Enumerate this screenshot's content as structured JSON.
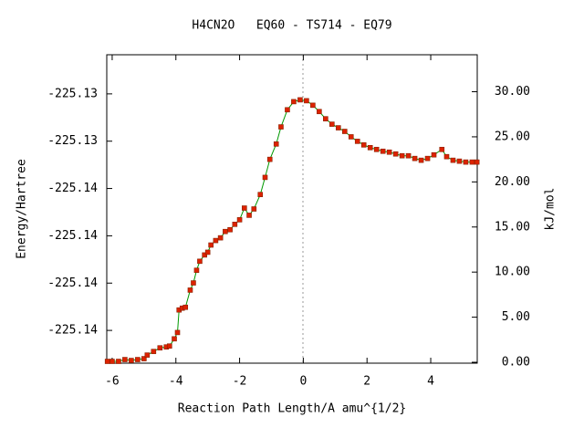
{
  "chart_data": {
    "type": "line",
    "title": "H4CN2O   EQ60 - TS714 - EQ79",
    "x_label": "Reaction Path Length/A amu^{1/2}",
    "y_label": "Energy/Hartree",
    "y2_label": "kJ/mol",
    "xlim": [
      -6.17,
      5.46
    ],
    "xticks": [
      -6,
      -4,
      -2,
      0,
      2,
      4
    ],
    "ylim": [
      -225.141385,
      -225.128346
    ],
    "yticks": [
      {
        "value": -225.13,
        "label": "-225.13"
      },
      {
        "value": -225.132,
        "label": "-225.13"
      },
      {
        "value": -225.134,
        "label": "-225.14"
      },
      {
        "value": -225.136,
        "label": "-225.14"
      },
      {
        "value": -225.138,
        "label": "-225.14"
      },
      {
        "value": -225.14,
        "label": "-225.14"
      }
    ],
    "y2lim": [
      -0.1,
      34.1
    ],
    "y2ticks": [
      {
        "value": 0,
        "label": "0.00"
      },
      {
        "value": 5,
        "label": "5.00"
      },
      {
        "value": 10,
        "label": "10.00"
      },
      {
        "value": 15,
        "label": "15.00"
      },
      {
        "value": 20,
        "label": "20.00"
      },
      {
        "value": 25,
        "label": "25.00"
      },
      {
        "value": 30,
        "label": "30.00"
      }
    ],
    "x": [
      -6.15,
      -6.0,
      -5.8,
      -5.6,
      -5.4,
      -5.2,
      -5.0,
      -4.9,
      -4.7,
      -4.5,
      -4.3,
      -4.2,
      -4.05,
      -3.95,
      -3.9,
      -3.8,
      -3.7,
      -3.55,
      -3.45,
      -3.35,
      -3.25,
      -3.1,
      -3.0,
      -2.9,
      -2.75,
      -2.6,
      -2.45,
      -2.3,
      -2.15,
      -2.0,
      -1.85,
      -1.7,
      -1.55,
      -1.35,
      -1.2,
      -1.05,
      -0.85,
      -0.7,
      -0.5,
      -0.3,
      -0.1,
      0.1,
      0.3,
      0.5,
      0.7,
      0.9,
      1.1,
      1.3,
      1.5,
      1.7,
      1.9,
      2.1,
      2.3,
      2.5,
      2.7,
      2.9,
      3.1,
      3.3,
      3.5,
      3.7,
      3.9,
      4.1,
      4.35,
      4.5,
      4.7,
      4.9,
      5.1,
      5.3,
      5.45
    ],
    "series": [
      {
        "axis": "y2",
        "color": "#009900",
        "marker_color": "#dd2200",
        "values": [
          0.1,
          0.1,
          0.1,
          0.3,
          0.2,
          0.3,
          0.4,
          0.8,
          1.2,
          1.6,
          1.7,
          1.8,
          2.6,
          3.3,
          5.8,
          6.0,
          6.1,
          8.0,
          8.8,
          10.2,
          11.2,
          11.9,
          12.2,
          13.0,
          13.5,
          13.8,
          14.5,
          14.7,
          15.3,
          15.8,
          17.1,
          16.3,
          17.0,
          18.6,
          20.5,
          22.5,
          24.2,
          26.1,
          28.0,
          28.9,
          29.1,
          29.0,
          28.5,
          27.8,
          27.0,
          26.4,
          26.0,
          25.6,
          25.0,
          24.5,
          24.1,
          23.8,
          23.6,
          23.4,
          23.3,
          23.1,
          22.9,
          22.9,
          22.6,
          22.4,
          22.6,
          23.0,
          23.6,
          22.8,
          22.4,
          22.3,
          22.2,
          22.2,
          22.2
        ]
      }
    ]
  }
}
